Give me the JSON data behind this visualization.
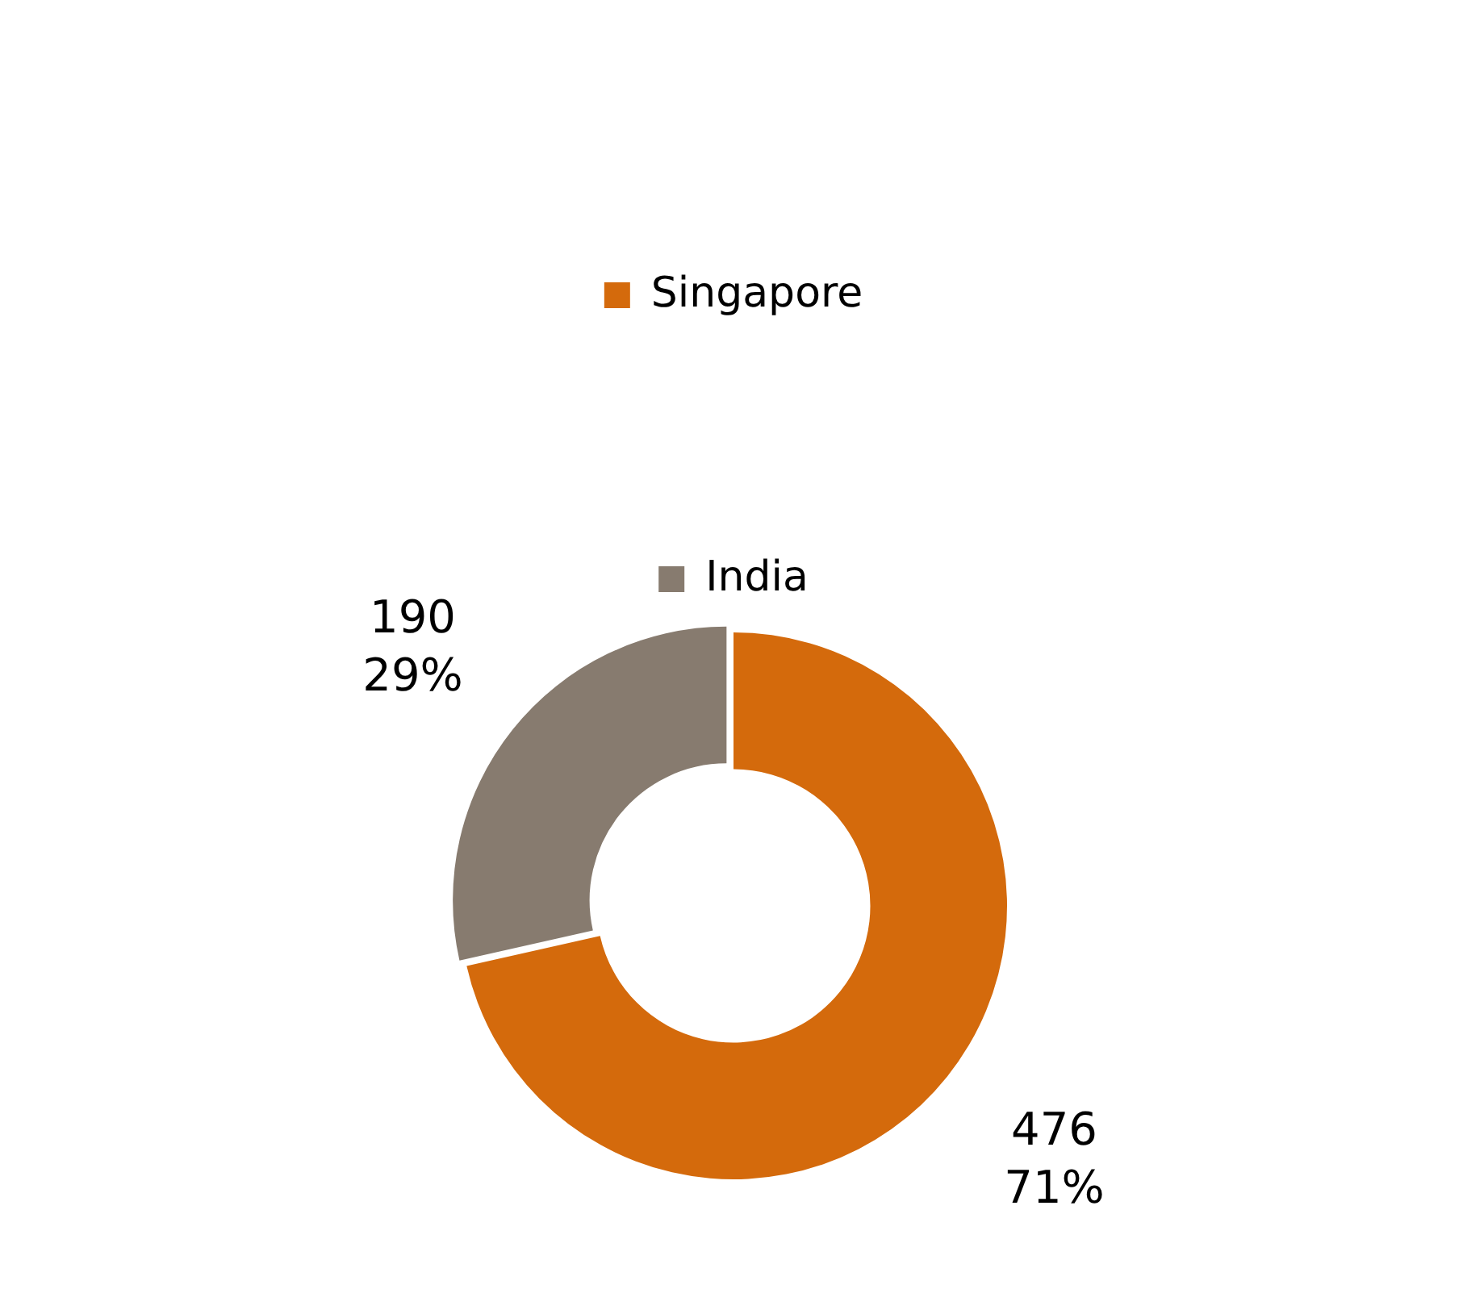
{
  "chart_data": {
    "type": "donut",
    "categories": [
      "Singapore",
      "India"
    ],
    "values": [
      476,
      190
    ],
    "colors": [
      "#d46a0c",
      "#877b6f"
    ],
    "value_labels": [
      "476\n71%",
      "190\n29%"
    ],
    "legend": "top"
  }
}
